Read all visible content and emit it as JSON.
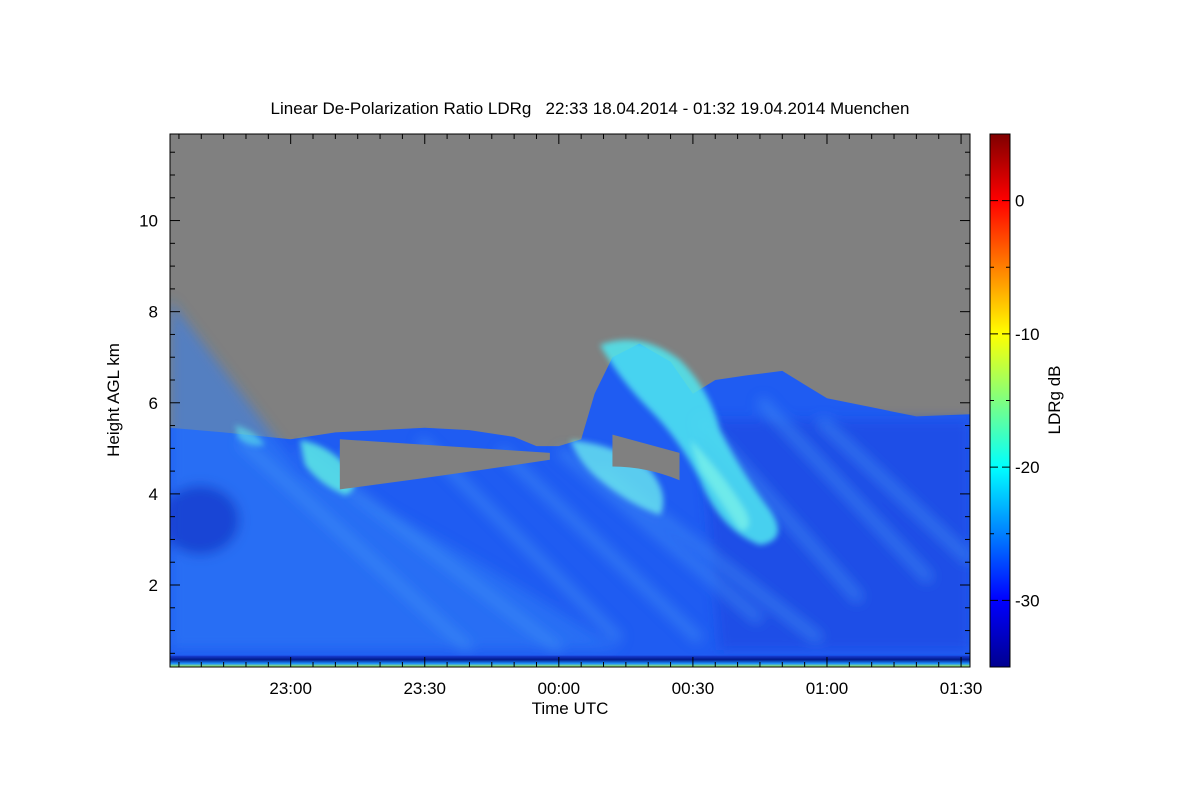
{
  "chart_data": {
    "type": "heatmap",
    "title": "Linear De-Polarization Ratio LDRg   22:33 18.04.2014 - 01:32 19.04.2014 Muenchen",
    "xlabel": "Time UTC",
    "ylabel": "Height AGL km",
    "x_ticks": [
      "23:00",
      "23:30",
      "00:00",
      "00:30",
      "01:00",
      "01:30"
    ],
    "x_tick_values_min": [
      -60,
      -30,
      0,
      30,
      60,
      90
    ],
    "xlim_min": [
      -87,
      92
    ],
    "y_ticks": [
      "2",
      "4",
      "6",
      "8",
      "10"
    ],
    "y_tick_values": [
      2,
      4,
      6,
      8,
      10
    ],
    "ylim": [
      0.2,
      11.9
    ],
    "colorbar": {
      "label": "LDRg dB",
      "ticks": [
        "0",
        "-10",
        "-20",
        "-30"
      ],
      "tick_values": [
        0,
        -10,
        -20,
        -30
      ],
      "range": [
        -35,
        5
      ],
      "colormap": "jet"
    },
    "no_signal_color": "#808080",
    "surface_layer_km": [
      0.2,
      0.45
    ],
    "cloud_top_km": [
      [
        -87,
        5.45
      ],
      [
        -75,
        5.35
      ],
      [
        -60,
        5.2
      ],
      [
        -50,
        5.35
      ],
      [
        -40,
        5.4
      ],
      [
        -30,
        5.45
      ],
      [
        -20,
        5.4
      ],
      [
        -10,
        5.25
      ],
      [
        -5,
        5.05
      ],
      [
        0,
        5.05
      ],
      [
        5,
        5.2
      ],
      [
        8,
        6.2
      ],
      [
        12,
        7.0
      ],
      [
        18,
        7.3
      ],
      [
        25,
        6.9
      ],
      [
        30,
        6.2
      ],
      [
        35,
        6.5
      ],
      [
        42,
        6.6
      ],
      [
        50,
        6.7
      ],
      [
        55,
        6.4
      ],
      [
        60,
        6.1
      ],
      [
        70,
        5.9
      ],
      [
        80,
        5.7
      ],
      [
        92,
        5.75
      ]
    ],
    "gap_regions": [
      {
        "x_min": [
          -49,
          -2
        ],
        "top_km": [
          5.2,
          4.9
        ],
        "bottom_km": [
          4.1,
          4.75
        ]
      },
      {
        "x_min": [
          12,
          27
        ],
        "top_km": [
          5.3,
          4.9
        ],
        "bottom_km": [
          4.6,
          4.3
        ]
      }
    ]
  }
}
